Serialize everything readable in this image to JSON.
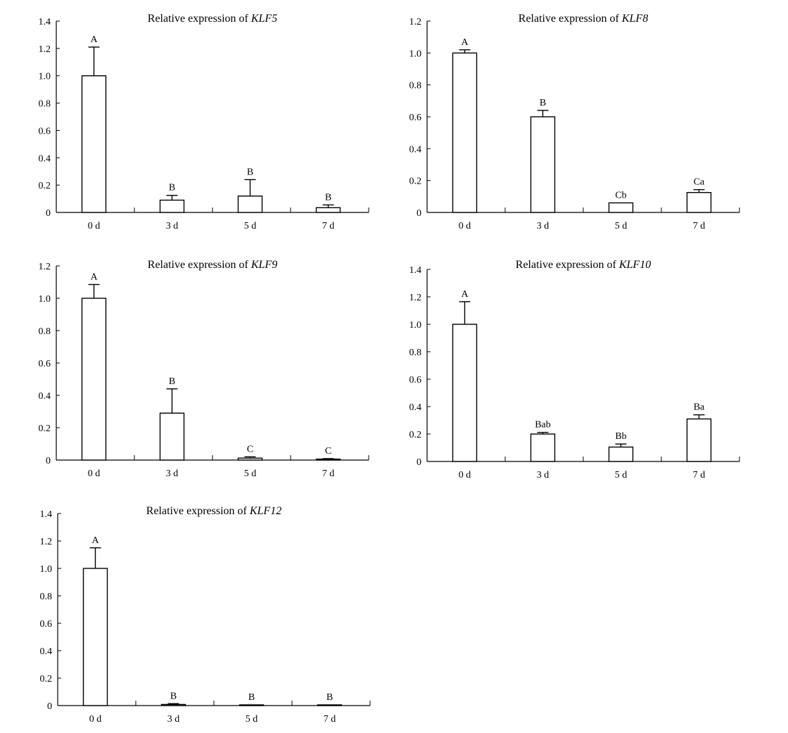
{
  "chart_data": [
    {
      "type": "bar",
      "title_prefix": "Relative expression of ",
      "title_gene": "KLF5",
      "categories": [
        "0 d",
        "3 d",
        "5 d",
        "7 d"
      ],
      "values": [
        1.0,
        0.09,
        0.12,
        0.035
      ],
      "errors": [
        0.21,
        0.035,
        0.12,
        0.02
      ],
      "sig_labels": [
        "A",
        "B",
        "B",
        "B"
      ],
      "ylim": [
        0,
        1.4
      ],
      "yticks": [
        {
          "v": 0,
          "label": "0"
        },
        {
          "v": 0.2,
          "label": "0.2"
        },
        {
          "v": 0.4,
          "label": "0.4"
        },
        {
          "v": 0.6,
          "label": "0.6"
        },
        {
          "v": 0.8,
          "label": "0.8"
        },
        {
          "v": 1.0,
          "label": "1.0"
        },
        {
          "v": 1.2,
          "label": "1.2"
        },
        {
          "v": 1.4,
          "label": "1.4"
        }
      ]
    },
    {
      "type": "bar",
      "title_prefix": "Relative expression of ",
      "title_gene": "KLF8",
      "categories": [
        "0 d",
        "3 d",
        "5 d",
        "7 d"
      ],
      "values": [
        1.0,
        0.6,
        0.06,
        0.125
      ],
      "errors": [
        0.02,
        0.04,
        0.0,
        0.018
      ],
      "sig_labels": [
        "A",
        "B",
        "Cb",
        "Ca"
      ],
      "ylim": [
        0,
        1.2
      ],
      "yticks": [
        {
          "v": 0,
          "label": "0"
        },
        {
          "v": 0.2,
          "label": "0.2"
        },
        {
          "v": 0.4,
          "label": "0.4"
        },
        {
          "v": 0.6,
          "label": "0.6"
        },
        {
          "v": 0.8,
          "label": "0.8"
        },
        {
          "v": 1.0,
          "label": "1.0"
        },
        {
          "v": 1.2,
          "label": "1.2"
        }
      ]
    },
    {
      "type": "bar",
      "title_prefix": "Relative expression of ",
      "title_gene": "KLF9",
      "categories": [
        "0 d",
        "3 d",
        "5 d",
        "7 d"
      ],
      "values": [
        1.0,
        0.29,
        0.012,
        0.006
      ],
      "errors": [
        0.085,
        0.15,
        0.008,
        0.003
      ],
      "sig_labels": [
        "A",
        "B",
        "C",
        "C"
      ],
      "ylim": [
        0,
        1.2
      ],
      "yticks": [
        {
          "v": 0,
          "label": "0"
        },
        {
          "v": 0.2,
          "label": "0.2"
        },
        {
          "v": 0.4,
          "label": "0.4"
        },
        {
          "v": 0.6,
          "label": "0.6"
        },
        {
          "v": 0.8,
          "label": "0.8"
        },
        {
          "v": 1.0,
          "label": "1.0"
        },
        {
          "v": 1.2,
          "label": "1.2"
        }
      ]
    },
    {
      "type": "bar",
      "title_prefix": "Relative expression of ",
      "title_gene": "KLF10",
      "categories": [
        "0 d",
        "3 d",
        "5 d",
        "7 d"
      ],
      "values": [
        1.0,
        0.2,
        0.105,
        0.31
      ],
      "errors": [
        0.165,
        0.012,
        0.022,
        0.03
      ],
      "sig_labels": [
        "A",
        "Bab",
        "Bb",
        "Ba"
      ],
      "ylim": [
        0,
        1.4
      ],
      "yticks": [
        {
          "v": 0,
          "label": "0"
        },
        {
          "v": 0.2,
          "label": "0.2"
        },
        {
          "v": 0.4,
          "label": "0.4"
        },
        {
          "v": 0.6,
          "label": "0.6"
        },
        {
          "v": 0.8,
          "label": "0.8"
        },
        {
          "v": 1.0,
          "label": "1.0"
        },
        {
          "v": 1.2,
          "label": "1.2"
        },
        {
          "v": 1.4,
          "label": "1.4"
        }
      ]
    },
    {
      "type": "bar",
      "title_prefix": "Relative expression of ",
      "title_gene": "KLF12",
      "categories": [
        "0 d",
        "3 d",
        "5 d",
        "7 d"
      ],
      "values": [
        1.0,
        0.008,
        0.004,
        0.004
      ],
      "errors": [
        0.15,
        0.006,
        0.0,
        0.0
      ],
      "sig_labels": [
        "A",
        "B",
        "B",
        "B"
      ],
      "ylim": [
        0,
        1.4
      ],
      "yticks": [
        {
          "v": 0,
          "label": "0"
        },
        {
          "v": 0.2,
          "label": "0.2"
        },
        {
          "v": 0.4,
          "label": "0.4"
        },
        {
          "v": 0.6,
          "label": "0.6"
        },
        {
          "v": 0.8,
          "label": "0.8"
        },
        {
          "v": 1.0,
          "label": "1.0"
        },
        {
          "v": 1.2,
          "label": "1.2"
        },
        {
          "v": 1.4,
          "label": "1.4"
        }
      ]
    }
  ]
}
